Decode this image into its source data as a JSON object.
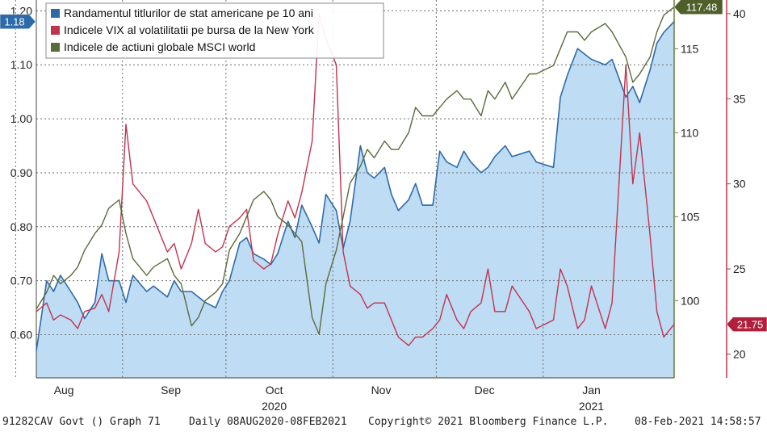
{
  "chart_data": {
    "type": "line",
    "x": [
      "2020-08-07",
      "2020-08-10",
      "2020-08-12",
      "2020-08-14",
      "2020-08-17",
      "2020-08-19",
      "2020-08-21",
      "2020-08-24",
      "2020-08-26",
      "2020-08-28",
      "2020-08-31",
      "2020-09-02",
      "2020-09-04",
      "2020-09-08",
      "2020-09-10",
      "2020-09-14",
      "2020-09-16",
      "2020-09-18",
      "2020-09-21",
      "2020-09-23",
      "2020-09-25",
      "2020-09-28",
      "2020-09-30",
      "2020-10-02",
      "2020-10-05",
      "2020-10-07",
      "2020-10-09",
      "2020-10-12",
      "2020-10-14",
      "2020-10-16",
      "2020-10-19",
      "2020-10-21",
      "2020-10-23",
      "2020-10-26",
      "2020-10-28",
      "2020-10-30",
      "2020-11-02",
      "2020-11-04",
      "2020-11-06",
      "2020-11-09",
      "2020-11-11",
      "2020-11-13",
      "2020-11-16",
      "2020-11-18",
      "2020-11-20",
      "2020-11-23",
      "2020-11-25",
      "2020-11-27",
      "2020-11-30",
      "2020-12-02",
      "2020-12-04",
      "2020-12-07",
      "2020-12-09",
      "2020-12-11",
      "2020-12-14",
      "2020-12-16",
      "2020-12-18",
      "2020-12-21",
      "2020-12-23",
      "2020-12-28",
      "2020-12-30",
      "2021-01-04",
      "2021-01-06",
      "2021-01-08",
      "2021-01-11",
      "2021-01-13",
      "2021-01-15",
      "2021-01-19",
      "2021-01-21",
      "2021-01-25",
      "2021-01-27",
      "2021-01-29",
      "2021-02-01",
      "2021-02-03",
      "2021-02-05",
      "2021-02-08"
    ],
    "series": [
      {
        "name": "Randamentul titlurilor de stat americane pe 10 ani",
        "axis": "left",
        "color": "#2e6aa8",
        "fill": "#bfdcf5",
        "values": [
          0.57,
          0.7,
          0.68,
          0.71,
          0.68,
          0.66,
          0.63,
          0.66,
          0.75,
          0.7,
          0.7,
          0.66,
          0.71,
          0.68,
          0.69,
          0.67,
          0.7,
          0.68,
          0.68,
          0.67,
          0.66,
          0.65,
          0.68,
          0.7,
          0.77,
          0.78,
          0.75,
          0.74,
          0.73,
          0.75,
          0.81,
          0.78,
          0.84,
          0.8,
          0.77,
          0.86,
          0.83,
          0.76,
          0.81,
          0.95,
          0.9,
          0.89,
          0.91,
          0.86,
          0.83,
          0.85,
          0.88,
          0.84,
          0.84,
          0.94,
          0.92,
          0.91,
          0.94,
          0.92,
          0.9,
          0.91,
          0.93,
          0.95,
          0.93,
          0.94,
          0.92,
          0.91,
          1.04,
          1.08,
          1.13,
          1.12,
          1.11,
          1.1,
          1.11,
          1.04,
          1.06,
          1.03,
          1.09,
          1.14,
          1.16,
          1.18
        ]
      },
      {
        "name": "Indicele VIX al volatilitatii pe bursa de la New York",
        "axis": "right",
        "color": "#c2334d",
        "values": [
          22.5,
          23.0,
          22.0,
          22.3,
          22.0,
          21.5,
          22.5,
          22.7,
          23.5,
          22.5,
          26.0,
          33.5,
          30.0,
          29.0,
          28.0,
          26.0,
          26.5,
          25.0,
          26.5,
          28.5,
          26.5,
          26.0,
          26.3,
          27.5,
          28.0,
          28.5,
          25.5,
          25.0,
          25.3,
          27.0,
          29.0,
          28.0,
          29.5,
          32.5,
          40.0,
          38.5,
          37.0,
          26.0,
          24.0,
          23.5,
          22.7,
          23.0,
          23.0,
          22.0,
          21.0,
          20.5,
          21.0,
          21.0,
          21.5,
          22.0,
          23.5,
          22.0,
          21.5,
          22.5,
          23.0,
          25.0,
          22.5,
          22.5,
          24.0,
          22.5,
          21.5,
          22.0,
          25.0,
          24.0,
          21.5,
          22.0,
          24.0,
          21.5,
          23.0,
          37.0,
          30.0,
          33.0,
          27.0,
          22.5,
          21.0,
          21.75
        ]
      },
      {
        "name": "Indicele de actiuni globale MSCI world",
        "axis": "secondary",
        "color": "#5a6b3a",
        "values": [
          99.5,
          100.5,
          101.5,
          101.0,
          101.5,
          102.0,
          103.0,
          104.0,
          104.5,
          105.5,
          106.0,
          104.0,
          102.5,
          101.5,
          102.0,
          102.5,
          101.5,
          101.0,
          98.5,
          99.0,
          100.0,
          100.5,
          101.0,
          103.0,
          104.0,
          105.0,
          106.0,
          106.5,
          106.0,
          105.0,
          104.5,
          104.0,
          103.5,
          99.0,
          98.0,
          101.0,
          103.0,
          105.0,
          107.0,
          108.0,
          109.0,
          108.5,
          109.5,
          109.0,
          109.0,
          110.0,
          111.5,
          111.0,
          111.0,
          111.5,
          112.0,
          112.5,
          112.0,
          112.0,
          111.0,
          112.5,
          112.0,
          113.0,
          112.0,
          113.5,
          113.5,
          114.0,
          115.0,
          116.0,
          116.0,
          115.5,
          116.0,
          116.5,
          116.0,
          114.5,
          113.0,
          113.5,
          114.5,
          116.0,
          117.0,
          117.48
        ]
      }
    ],
    "y_left": {
      "range": [
        0.52,
        1.22
      ],
      "ticks": [
        "0.60",
        "0.70",
        "0.80",
        "0.90",
        "1.00",
        "1.10",
        "1.20"
      ]
    },
    "y_secondary": {
      "range": [
        95.4,
        117.9
      ],
      "ticks": [
        "100",
        "105",
        "110",
        "115"
      ]
    },
    "y_right": {
      "range": [
        18.6,
        40.8
      ],
      "ticks": [
        "20",
        "25",
        "30",
        "35",
        "40"
      ]
    },
    "x_month_labels": [
      {
        "label": "Aug",
        "date": "2020-08-15"
      },
      {
        "label": "Sep",
        "date": "2020-09-15"
      },
      {
        "label": "Oct",
        "date": "2020-10-15"
      },
      {
        "label": "Nov",
        "date": "2020-11-15"
      },
      {
        "label": "Dec",
        "date": "2020-12-15"
      },
      {
        "label": "Jan",
        "date": "2021-01-15"
      }
    ],
    "x_month_gridlines": [
      "2020-08-01",
      "2020-09-01",
      "2020-10-01",
      "2020-11-01",
      "2020-12-01",
      "2021-01-01"
    ],
    "x_year_labels": [
      {
        "label": "2020",
        "date": "2020-10-15"
      },
      {
        "label": "2021",
        "date": "2021-01-15"
      }
    ],
    "last_value_tags": {
      "left": "1.18",
      "secondary": "117.48",
      "right": "21.75"
    },
    "grid": true,
    "legend_position": "top-left"
  },
  "footer": {
    "security": "91282CAV Govt () Graph 71",
    "range": "Daily 08AUG2020-08FEB2021",
    "copyright": "Copyright© 2021 Bloomberg Finance L.P.",
    "timestamp": "08-Feb-2021 14:58:57"
  }
}
